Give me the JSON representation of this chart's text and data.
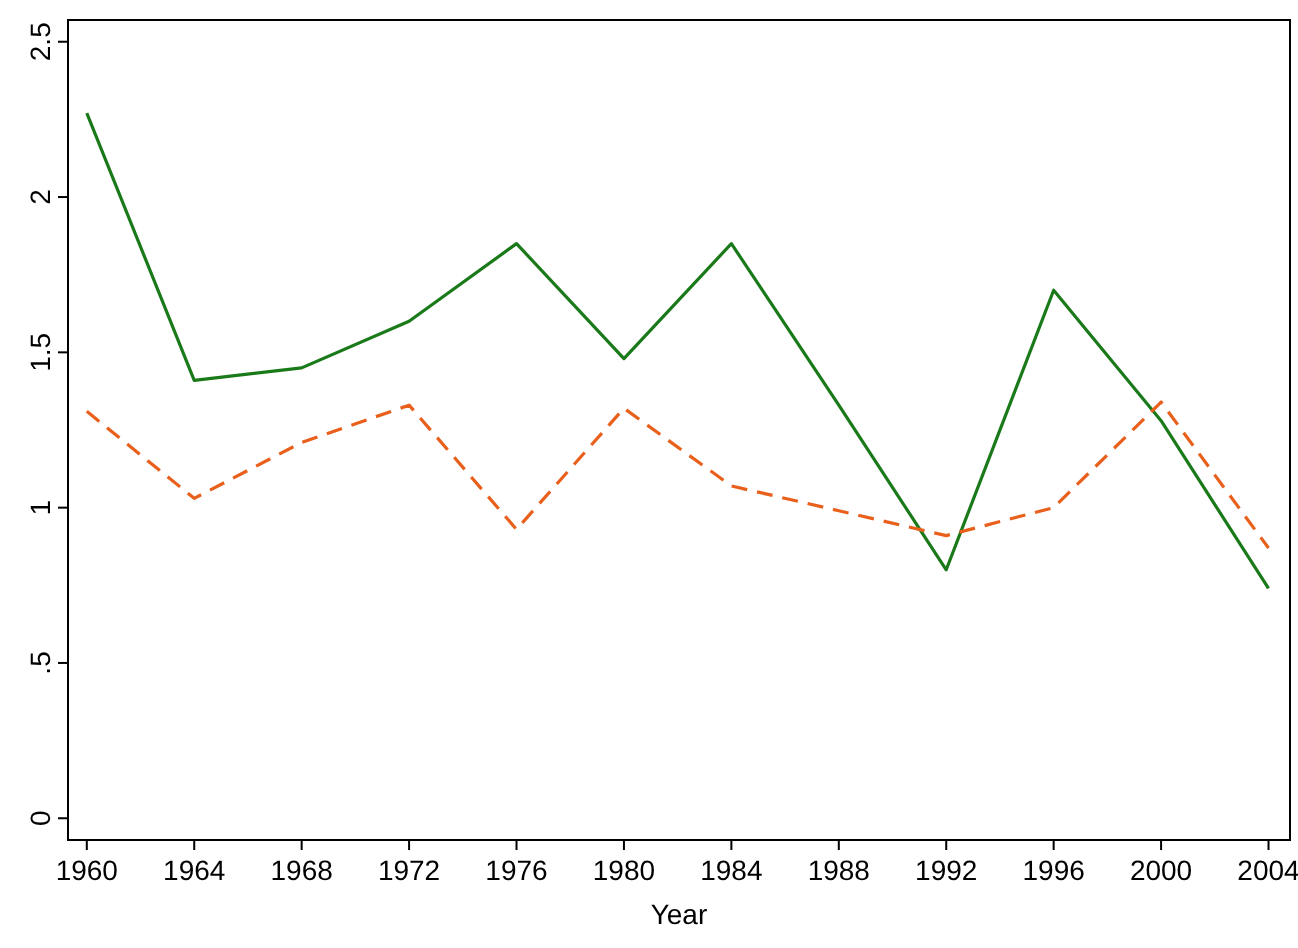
{
  "chart_data": {
    "type": "line",
    "xlabel": "Year",
    "x": [
      1960,
      1964,
      1968,
      1972,
      1976,
      1980,
      1984,
      1988,
      1992,
      1996,
      2000,
      2004
    ],
    "series": [
      {
        "color": "#1a7a1a",
        "line_style": "solid",
        "values": [
          2.27,
          1.41,
          1.45,
          1.6,
          1.85,
          1.48,
          1.85,
          1.33,
          0.8,
          1.7,
          1.28,
          0.74
        ]
      },
      {
        "color": "#e8601c",
        "line_style": "dashed",
        "values": [
          1.31,
          1.03,
          1.21,
          1.33,
          0.93,
          1.32,
          1.07,
          0.99,
          0.91,
          1.0,
          1.34,
          0.87
        ]
      }
    ],
    "xlim": [
      1959.3,
      2004.8
    ],
    "xticks": [
      1960,
      1964,
      1968,
      1972,
      1976,
      1980,
      1984,
      1988,
      1992,
      1996,
      2000,
      2004
    ],
    "ylim": [
      -0.07,
      2.57
    ],
    "yticks": [
      0,
      {
        "value": 0.5,
        "label": ".5"
      },
      1,
      1.5,
      2,
      2.5
    ],
    "grid": false,
    "marker": "none"
  }
}
